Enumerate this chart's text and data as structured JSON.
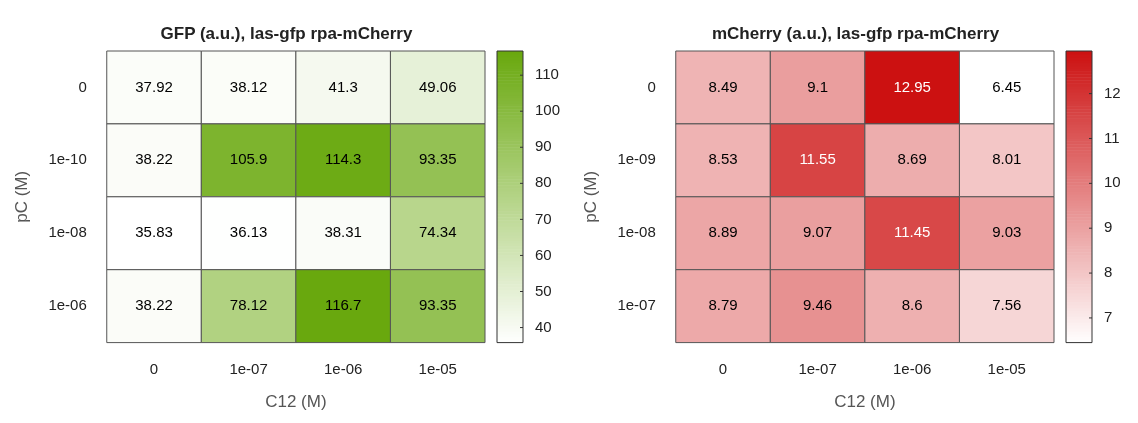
{
  "chart_data": [
    {
      "type": "heatmap",
      "title": "GFP (a.u.), las-gfp rpa-mCherry",
      "xlabel": "C12 (M)",
      "ylabel": "pC (M)",
      "color": "#69a80e",
      "data_labels": true,
      "categories": [
        "0",
        "1e-07",
        "1e-06",
        "1e-05"
      ],
      "y_categories": [
        "0",
        "1e-10",
        "1e-08",
        "1e-06"
      ],
      "cells": [
        [
          37.92,
          38.12,
          41.3,
          49.06
        ],
        [
          38.22,
          105.9,
          114.3,
          93.35
        ],
        [
          35.83,
          36.13,
          38.31,
          74.34
        ],
        [
          38.22,
          78.12,
          116.7,
          93.35
        ]
      ],
      "clim": [
        35.83,
        116.7
      ],
      "cticks": [
        40,
        50,
        60,
        70,
        80,
        90,
        100,
        110
      ]
    },
    {
      "type": "heatmap",
      "title": "mCherry (a.u.), las-gfp rpa-mCherry",
      "xlabel": "C12 (M)",
      "ylabel": "pC (M)",
      "color": "#cc1111",
      "data_labels": true,
      "categories": [
        "0",
        "1e-07",
        "1e-06",
        "1e-05"
      ],
      "y_categories": [
        "0",
        "1e-09",
        "1e-08",
        "1e-07"
      ],
      "cells": [
        [
          8.49,
          9.1,
          12.95,
          6.45
        ],
        [
          8.53,
          11.55,
          8.69,
          8.01
        ],
        [
          8.89,
          9.07,
          11.45,
          9.03
        ],
        [
          8.79,
          9.46,
          8.6,
          7.56
        ]
      ],
      "clim": [
        6.45,
        12.95
      ],
      "cticks": [
        7,
        8,
        9,
        10,
        11,
        12
      ]
    }
  ]
}
